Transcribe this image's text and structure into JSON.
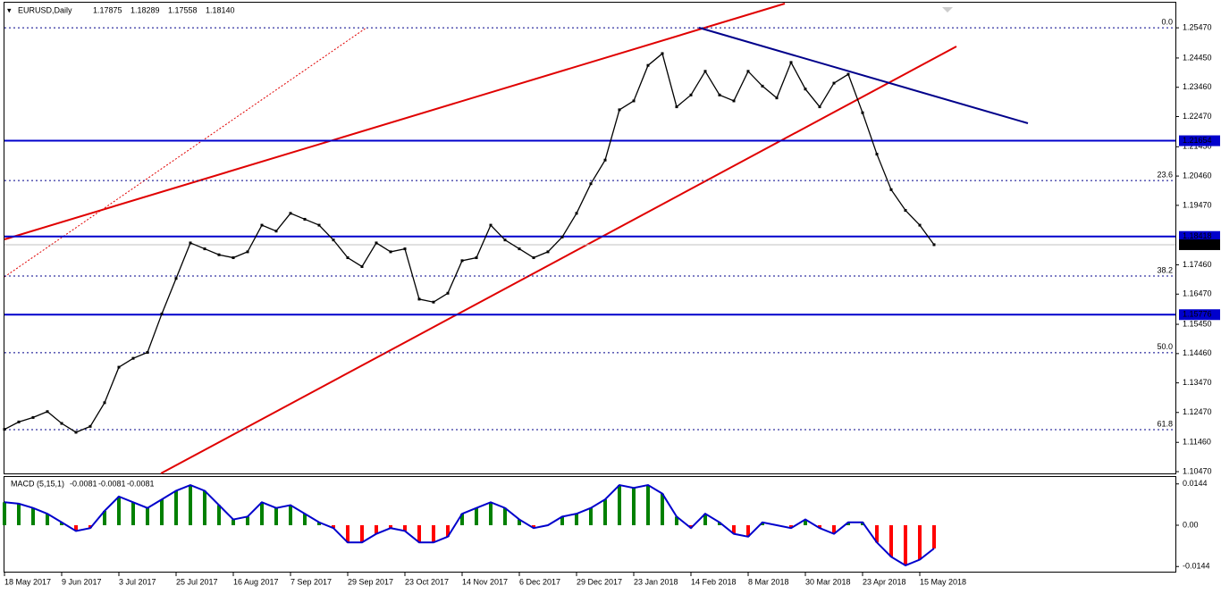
{
  "chart_data": [
    {
      "type": "line",
      "title": "EURUSD,Daily",
      "ohlc": [
        {
          "value": 1.17875,
          "label": "1.17875"
        },
        {
          "value": 1.18289,
          "label": "1.18289"
        },
        {
          "value": 1.17558,
          "label": "1.17558"
        },
        {
          "value": 1.1814,
          "label": "1.18140"
        }
      ],
      "categories": [
        "18 May 2017",
        null,
        null,
        null,
        "9 Jun 2017",
        null,
        null,
        null,
        "3 Jul 2017",
        null,
        null,
        null,
        "25 Jul 2017",
        null,
        null,
        null,
        "16 Aug 2017",
        null,
        null,
        null,
        "7 Sep 2017",
        null,
        null,
        null,
        "29 Sep 2017",
        null,
        null,
        null,
        "23 Oct 2017",
        null,
        null,
        null,
        "14 Nov 2017",
        null,
        null,
        null,
        "6 Dec 2017",
        null,
        null,
        null,
        "29 Dec 2017",
        null,
        null,
        null,
        "23 Jan 2018",
        null,
        null,
        null,
        "14 Feb 2018",
        null,
        null,
        null,
        "8 Mar 2018",
        null,
        null,
        null,
        "30 Mar 2018",
        null,
        null,
        null,
        "23 Apr 2018",
        null,
        null,
        null,
        "15 May 2018",
        null
      ],
      "values": [
        1.119,
        1.1215,
        1.123,
        1.125,
        1.121,
        1.118,
        1.12,
        1.128,
        1.14,
        1.143,
        1.145,
        1.158,
        1.17,
        1.182,
        1.18,
        1.178,
        1.177,
        1.179,
        1.188,
        1.186,
        1.192,
        1.19,
        1.188,
        1.183,
        1.177,
        1.174,
        1.182,
        1.179,
        1.18,
        1.163,
        1.162,
        1.165,
        1.176,
        1.177,
        1.188,
        1.183,
        1.18,
        1.177,
        1.179,
        1.184,
        1.192,
        1.202,
        1.21,
        1.227,
        1.23,
        1.242,
        1.246,
        1.228,
        1.232,
        1.24,
        1.232,
        1.23,
        1.24,
        1.235,
        1.231,
        1.243,
        1.234,
        1.228,
        1.236,
        1.239,
        1.226,
        1.212,
        1.2,
        1.193,
        1.188,
        1.1814
      ],
      "color": "#000000",
      "ylim": [
        1.1038,
        1.2641
      ],
      "yticks": [
        {
          "value": 1.2547,
          "label": "1.25470"
        },
        {
          "value": 1.2445,
          "label": "1.24450"
        },
        {
          "value": 1.2346,
          "label": "1.23460"
        },
        {
          "value": 1.2247,
          "label": "1.22470"
        },
        {
          "value": 1.2145,
          "label": "1.21450"
        },
        {
          "value": 1.2046,
          "label": "1.20460"
        },
        {
          "value": 1.1947,
          "label": "1.19470"
        },
        {
          "value": 1.1746,
          "label": "1.17460"
        },
        {
          "value": 1.1647,
          "label": "1.16470"
        },
        {
          "value": 1.1545,
          "label": "1.15450"
        },
        {
          "value": 1.1446,
          "label": "1.14460"
        },
        {
          "value": 1.1347,
          "label": "1.13470"
        },
        {
          "value": 1.1247,
          "label": "1.12470"
        },
        {
          "value": 1.1146,
          "label": "1.11460"
        },
        {
          "value": 1.1047,
          "label": "1.10470"
        }
      ],
      "levels": [
        1.21654,
        1.18418,
        1.15776
      ],
      "current": {
        "value": 1.1814,
        "label": "1.18140"
      },
      "fib_levels": [
        {
          "label": "0.0",
          "value": 1.2547
        },
        {
          "label": "23.6",
          "value": 1.2031
        },
        {
          "label": "38.2",
          "value": 1.1708
        },
        {
          "label": "50.0",
          "value": 1.1449
        },
        {
          "label": "61.8",
          "value": 1.1189
        }
      ]
    },
    {
      "type": "bar",
      "title": "MACD (5,15,1)",
      "readings": [
        -0.0081,
        -0.0081,
        -0.0081
      ],
      "values": [
        0.008,
        0.0075,
        0.006,
        0.004,
        0.001,
        -0.002,
        -0.001,
        0.005,
        0.01,
        0.008,
        0.006,
        0.009,
        0.012,
        0.014,
        0.012,
        0.007,
        0.002,
        0.003,
        0.008,
        0.006,
        0.007,
        0.004,
        0.001,
        -0.001,
        -0.006,
        -0.006,
        -0.003,
        -0.001,
        -0.002,
        -0.006,
        -0.006,
        -0.004,
        0.004,
        0.006,
        0.008,
        0.006,
        0.002,
        -0.001,
        0.0,
        0.003,
        0.004,
        0.006,
        0.009,
        0.014,
        0.013,
        0.014,
        0.011,
        0.003,
        -0.001,
        0.004,
        0.001,
        -0.003,
        -0.004,
        0.001,
        0.0,
        -0.001,
        0.002,
        -0.001,
        -0.003,
        0.001,
        0.001,
        -0.006,
        -0.011,
        -0.014,
        -0.012,
        -0.0081
      ],
      "colors": {
        "positive": "#008000",
        "negative": "#ff0000",
        "line": "#0000cc"
      },
      "ylim": [
        -0.0165,
        0.0165
      ],
      "yticks": [
        0.0144,
        {
          "value": 0,
          "label": "0.00"
        },
        -0.0144
      ]
    }
  ]
}
